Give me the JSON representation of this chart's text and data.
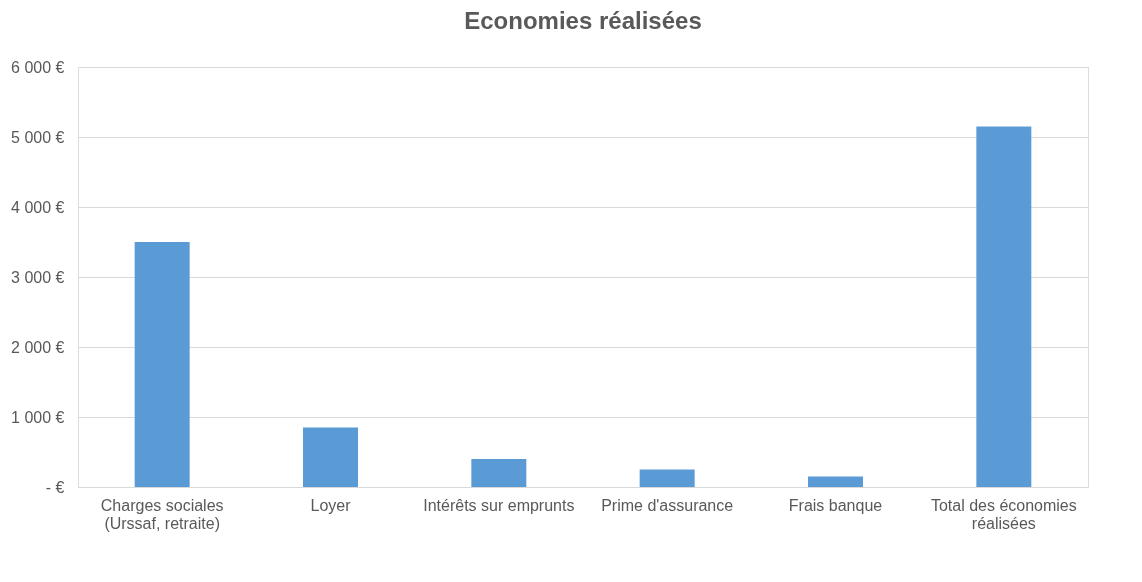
{
  "chart_data": {
    "type": "bar",
    "title": "Economies réalisées",
    "categories": [
      "Charges sociales (Urssaf, retraite)",
      "Loyer",
      "Intérêts sur emprunts",
      "Prime d'assurance",
      "Frais banque",
      "Total des économies réalisées"
    ],
    "values": [
      3500,
      850,
      400,
      250,
      150,
      5150
    ],
    "color": "#5b9bd5",
    "ylim": [
      0,
      6000
    ],
    "yticks": [
      {
        "value": 0,
        "label": "-  €"
      },
      {
        "value": 1000,
        "label": "1 000 €"
      },
      {
        "value": 2000,
        "label": "2 000 €"
      },
      {
        "value": 3000,
        "label": "3 000 €"
      },
      {
        "value": 4000,
        "label": "4 000 €"
      },
      {
        "value": 5000,
        "label": "5 000 €"
      },
      {
        "value": 6000,
        "label": "6 000 €"
      }
    ],
    "grid": "y"
  }
}
